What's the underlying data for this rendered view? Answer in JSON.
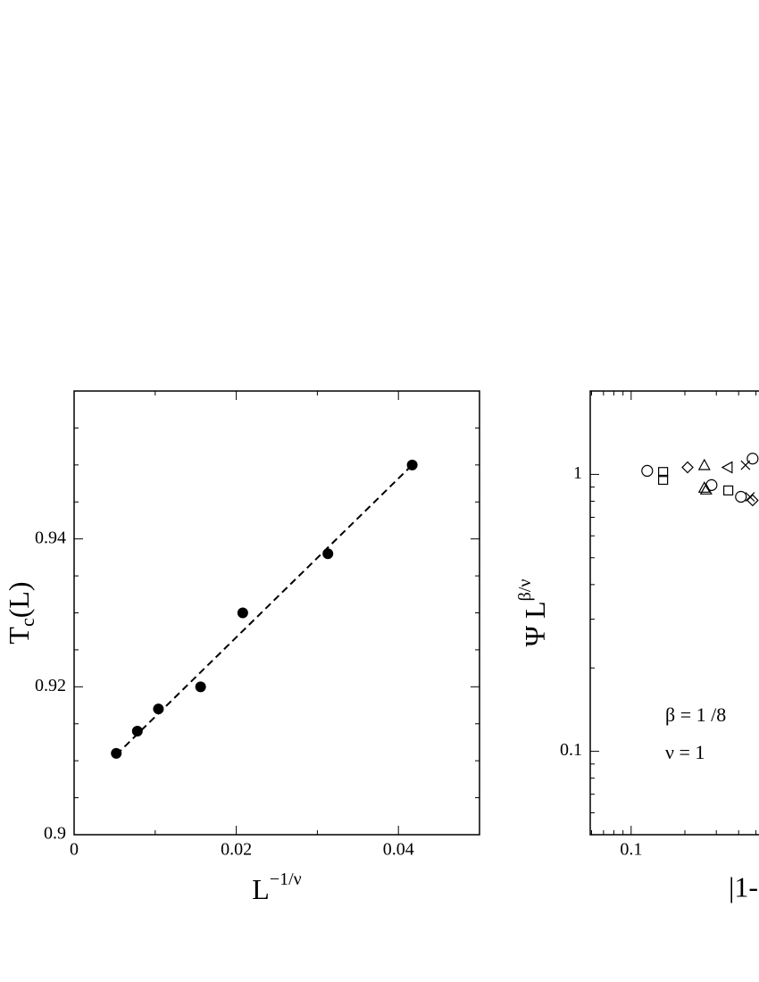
{
  "chart_data": [
    {
      "type": "scatter",
      "ylabel": [
        "T",
        "c",
        "(L)"
      ],
      "xlabel": [
        "L",
        "−1/ν"
      ],
      "xlim": [
        0,
        0.05
      ],
      "ylim": [
        0.9,
        0.96
      ],
      "xticks": [
        0,
        0.02,
        0.04
      ],
      "yticks": [
        0.9,
        0.92,
        0.94
      ],
      "x_minor_ticks": [
        0.01,
        0.03
      ],
      "y_minor_ticks": [
        0.905,
        0.91,
        0.915,
        0.925,
        0.93,
        0.935,
        0.945,
        0.95,
        0.955
      ],
      "series": [
        {
          "marker": "filled-circle",
          "color": "#000000",
          "x": [
            0.0052,
            0.0078,
            0.0104,
            0.0156,
            0.0208,
            0.0313,
            0.0417
          ],
          "values": [
            0.911,
            0.914,
            0.917,
            0.92,
            0.93,
            0.938,
            0.95
          ]
        },
        {
          "marker": "dashed-line",
          "color": "#000000",
          "x": [
            0.0052,
            0.0417
          ],
          "values": [
            0.9108,
            0.95
          ]
        }
      ]
    },
    {
      "type": "scatter",
      "log_x": true,
      "log_y": true,
      "ylabel": [
        "Ψ L",
        "β/ν"
      ],
      "xlabel": "|1-",
      "annotations": [
        "β = 1 /8",
        "ν = 1"
      ],
      "xlim": [
        0.059,
        11
      ],
      "ylim": [
        0.05,
        2
      ],
      "xticks": [
        0.1
      ],
      "yticks": [
        0.1,
        1
      ],
      "x_minor_ticks": [
        0.06,
        0.07,
        0.08,
        0.09,
        0.2,
        0.3,
        0.4,
        0.5
      ],
      "y_minor_ticks": [
        0.06,
        0.07,
        0.08,
        0.09,
        0.2,
        0.3,
        0.4,
        0.5,
        0.6,
        0.7,
        0.8,
        0.9,
        2
      ],
      "series": [
        {
          "marker": "circle",
          "color": "#000000",
          "x": [
            0.123,
            0.282,
            0.412,
            0.479
          ],
          "values": [
            1.03,
            0.915,
            0.83,
            1.14
          ]
        },
        {
          "marker": "square",
          "color": "#000000",
          "x": [
            0.151,
            0.151,
            0.35
          ],
          "values": [
            1.02,
            0.956,
            0.875
          ]
        },
        {
          "marker": "diamond",
          "color": "#000000",
          "x": [
            0.207,
            0.479
          ],
          "values": [
            1.06,
            0.806
          ]
        },
        {
          "marker": "triangle-up",
          "color": "#000000",
          "x": [
            0.257,
            0.257,
            0.263
          ],
          "values": [
            1.08,
            0.895,
            0.882
          ]
        },
        {
          "marker": "triangle-left",
          "color": "#000000",
          "x": [
            0.347
          ],
          "values": [
            1.06
          ]
        },
        {
          "marker": "cross",
          "color": "#000000",
          "x": [
            0.437,
            0.463
          ],
          "values": [
            1.08,
            0.83
          ]
        }
      ]
    }
  ]
}
